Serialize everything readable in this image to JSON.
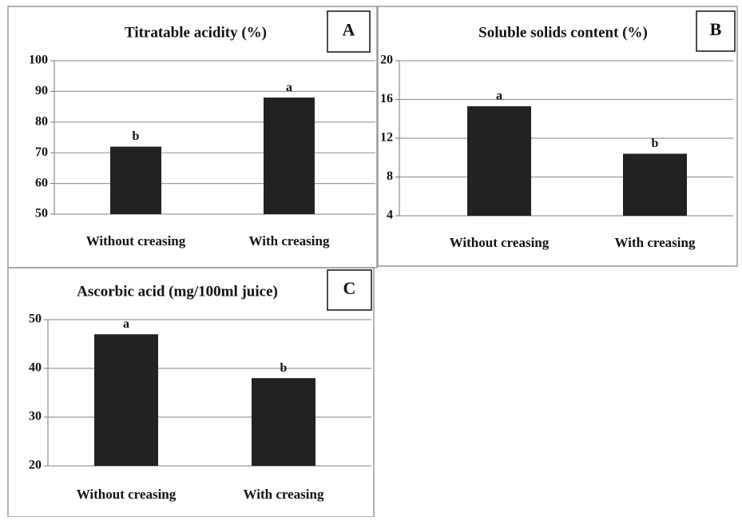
{
  "chart_data": [
    {
      "type": "bar",
      "title": "Titratable acidity (%)",
      "panel_label": "A",
      "categories": [
        "Without creasing",
        "With creasing"
      ],
      "values": [
        72,
        88
      ],
      "annotations": [
        "b",
        "a"
      ],
      "color": "#222222",
      "ylim": [
        50,
        100
      ],
      "yticks": [
        50,
        60,
        70,
        80,
        90,
        100
      ],
      "grid": true
    },
    {
      "type": "bar",
      "title": "Soluble solids content (%)",
      "panel_label": "B",
      "categories": [
        "Without creasing",
        "With creasing"
      ],
      "values": [
        15.3,
        10.4
      ],
      "annotations": [
        "a",
        "b"
      ],
      "color": "#222222",
      "ylim": [
        4,
        20
      ],
      "yticks": [
        4,
        8,
        12,
        16,
        20
      ],
      "grid": true
    },
    {
      "type": "bar",
      "title": "Ascorbic acid (mg/100ml juice)",
      "panel_label": "C",
      "categories": [
        "Without creasing",
        "With creasing"
      ],
      "values": [
        47,
        38
      ],
      "annotations": [
        "a",
        "b"
      ],
      "color": "#222222",
      "ylim": [
        20,
        50
      ],
      "yticks": [
        20,
        30,
        40,
        50
      ],
      "grid": true
    }
  ]
}
